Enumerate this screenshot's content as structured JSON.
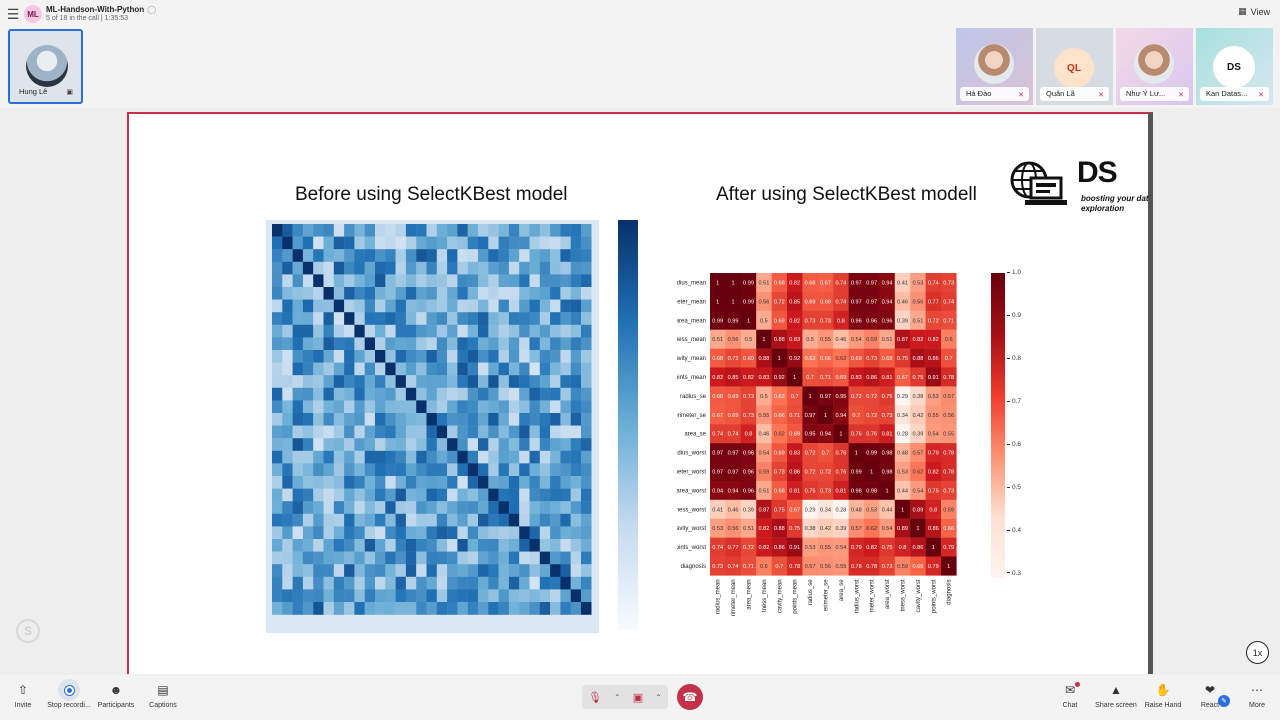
{
  "meeting": {
    "avatar_initials": "ML",
    "title": "ML-Handson-With-Python",
    "subtitle": "5 of 18 in the call | 1:35:53",
    "view_label": "View"
  },
  "self_tile": {
    "name": "Hung Lê"
  },
  "participants": [
    {
      "name": "Hà Đào",
      "kind": "photo"
    },
    {
      "name": "Quân Lã",
      "kind": "initials",
      "initials": "QL"
    },
    {
      "name": "Như Ý Lư...",
      "kind": "photo"
    },
    {
      "name": "Kan Datas...",
      "kind": "logo",
      "logo_text": "DS"
    }
  ],
  "slide": {
    "title_before": "Before using SelectKBest model",
    "title_after": "After using SelectKBest modell",
    "brand_text": "DS",
    "brand_tagline_1": "boosting your dat",
    "brand_tagline_2": "exploration"
  },
  "chart_data": {
    "type": "heatmap",
    "title": "",
    "labels": [
      "radius_mean",
      "perimeter_mean",
      "area_mean",
      "compactness_mean",
      "concavity_mean",
      "concave points_mean",
      "radius_se",
      "perimeter_se",
      "area_se",
      "radius_worst",
      "perimeter_worst",
      "area_worst",
      "compactness_worst",
      "concavity_worst",
      "concave points_worst",
      "diagnosis"
    ],
    "row_labels_visible": [
      "radius_mean",
      "erimeter_mean",
      "area_mean",
      "actness_mean",
      "oncavity_mean",
      "e points_mean",
      "radius_se",
      "perimeter_se",
      "area_se",
      "radius_worst",
      "erimeter_worst",
      "area_worst",
      "actness_worst",
      "oncavity_worst",
      "e points_worst",
      "diagnosis"
    ],
    "col_labels_visible": [
      "radius_mean",
      "rimeter_mean",
      "area_mean",
      "tness_mean",
      "cavity_mean",
      "points_mean",
      "radius_se",
      "erimeter_se",
      "area_se",
      "radius_worst",
      "meter_worst",
      "area_worst",
      "tness_worst",
      "cavity_worst",
      "points_worst",
      "diagnosis"
    ],
    "colorbar_ticks": [
      1.0,
      0.9,
      0.8,
      0.7,
      0.6,
      0.5,
      0.4,
      0.3
    ],
    "colorbar_range": [
      0.29,
      1.0
    ],
    "colormap": "Reds",
    "matrix": [
      [
        1,
        1,
        0.99,
        0.51,
        0.68,
        0.82,
        0.68,
        0.67,
        0.74,
        0.97,
        0.97,
        0.94,
        0.41,
        0.53,
        0.74,
        0.73
      ],
      [
        1,
        1,
        0.99,
        0.56,
        0.72,
        0.85,
        0.69,
        0.69,
        0.74,
        0.97,
        0.97,
        0.94,
        0.46,
        0.56,
        0.77,
        0.74
      ],
      [
        0.99,
        0.99,
        1,
        0.5,
        0.69,
        0.82,
        0.73,
        0.73,
        0.8,
        0.96,
        0.96,
        0.96,
        0.39,
        0.51,
        0.72,
        0.71
      ],
      [
        0.51,
        0.56,
        0.5,
        1,
        0.88,
        0.83,
        0.5,
        0.55,
        0.46,
        0.54,
        0.59,
        0.51,
        0.87,
        0.82,
        0.82,
        0.6
      ],
      [
        0.68,
        0.72,
        0.69,
        0.88,
        1,
        0.92,
        0.63,
        0.66,
        0.62,
        0.69,
        0.73,
        0.68,
        0.75,
        0.88,
        0.86,
        0.7
      ],
      [
        0.82,
        0.85,
        0.82,
        0.83,
        0.92,
        1,
        0.7,
        0.71,
        0.69,
        0.83,
        0.86,
        0.81,
        0.67,
        0.75,
        0.91,
        0.78
      ],
      [
        0.68,
        0.69,
        0.73,
        0.5,
        0.63,
        0.7,
        1,
        0.97,
        0.95,
        0.72,
        0.72,
        0.75,
        0.29,
        0.38,
        0.53,
        0.57
      ],
      [
        0.67,
        0.69,
        0.73,
        0.55,
        0.66,
        0.71,
        0.97,
        1,
        0.94,
        0.7,
        0.72,
        0.73,
        0.34,
        0.42,
        0.55,
        0.56
      ],
      [
        0.74,
        0.74,
        0.8,
        0.46,
        0.62,
        0.69,
        0.95,
        0.94,
        1,
        0.76,
        0.76,
        0.81,
        0.28,
        0.39,
        0.54,
        0.55
      ],
      [
        0.97,
        0.97,
        0.96,
        0.54,
        0.69,
        0.83,
        0.72,
        0.7,
        0.76,
        1,
        0.99,
        0.98,
        0.48,
        0.57,
        0.79,
        0.78
      ],
      [
        0.97,
        0.97,
        0.96,
        0.59,
        0.73,
        0.86,
        0.72,
        0.72,
        0.76,
        0.99,
        1,
        0.98,
        0.53,
        0.62,
        0.82,
        0.78
      ],
      [
        0.94,
        0.94,
        0.96,
        0.51,
        0.68,
        0.81,
        0.75,
        0.73,
        0.81,
        0.98,
        0.98,
        1,
        0.44,
        0.54,
        0.75,
        0.73
      ],
      [
        0.41,
        0.46,
        0.39,
        0.87,
        0.75,
        0.67,
        0.29,
        0.34,
        0.28,
        0.48,
        0.53,
        0.44,
        1,
        0.89,
        0.8,
        0.59
      ],
      [
        0.53,
        0.56,
        0.51,
        0.82,
        0.88,
        0.75,
        0.38,
        0.42,
        0.39,
        0.57,
        0.62,
        0.54,
        0.89,
        1,
        0.86,
        0.66
      ],
      [
        0.74,
        0.77,
        0.72,
        0.82,
        0.86,
        0.91,
        0.53,
        0.55,
        0.54,
        0.79,
        0.82,
        0.75,
        0.8,
        0.86,
        1,
        0.79
      ],
      [
        0.73,
        0.74,
        0.71,
        0.6,
        0.7,
        0.78,
        0.57,
        0.56,
        0.55,
        0.78,
        0.78,
        0.73,
        0.59,
        0.66,
        0.79,
        1
      ]
    ]
  },
  "before_heatmap": {
    "type": "heatmap",
    "colormap": "Blues",
    "size": 31
  },
  "toolbar": {
    "invite": "Invite",
    "stop_recording": "Stop recordi...",
    "participants": "Participants",
    "captions": "Captions",
    "chat": "Chat",
    "share_screen": "Share screen",
    "raise_hand": "Raise Hand",
    "react": "React",
    "more": "More"
  },
  "playback": {
    "speed": "1x"
  },
  "colors": {
    "accent": "#2b6fd8",
    "danger": "#c4314b"
  }
}
